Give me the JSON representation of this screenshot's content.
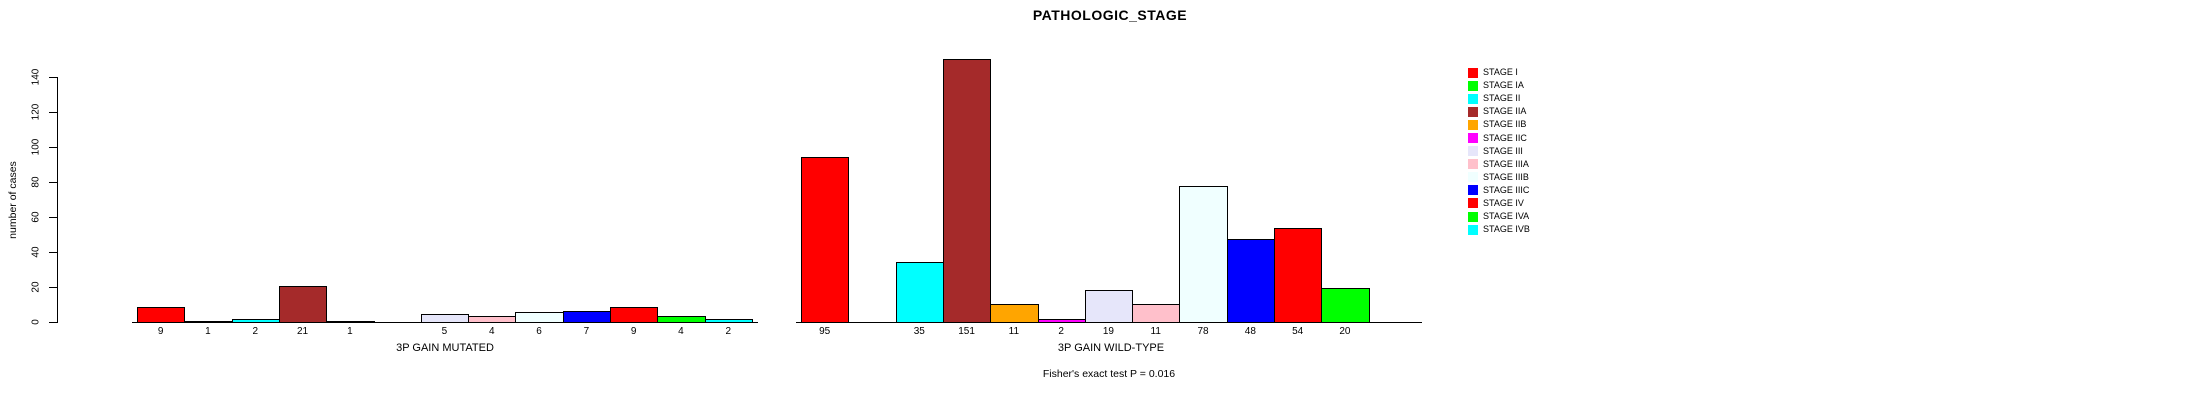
{
  "chart_data": {
    "type": "bar",
    "title": "PATHOLOGIC_STAGE",
    "ylabel": "number of cases",
    "ylim": [
      0,
      140
    ],
    "yticks": [
      0,
      20,
      40,
      60,
      80,
      100,
      120,
      140
    ],
    "categories": [
      "STAGE I",
      "STAGE IA",
      "STAGE II",
      "STAGE IIA",
      "STAGE IIB",
      "STAGE IIC",
      "STAGE III",
      "STAGE IIIA",
      "STAGE IIIB",
      "STAGE IIIC",
      "STAGE IV",
      "STAGE IVA",
      "STAGE IVB"
    ],
    "colors": [
      "#FF0000",
      "#00FF00",
      "#00FFFF",
      "#A52A2A",
      "#FFA500",
      "#FF00FF",
      "#E6E6FA",
      "#FFC0CB",
      "#F0FFFF",
      "#0000FF",
      "#FF0000",
      "#00FF00",
      "#00FFFF"
    ],
    "series": [
      {
        "name": "3P GAIN MUTATED",
        "values": [
          9,
          1,
          2,
          21,
          1,
          0,
          5,
          4,
          6,
          7,
          9,
          4,
          2
        ]
      },
      {
        "name": "3P GAIN WILD-TYPE",
        "values": [
          95,
          0,
          35,
          151,
          11,
          2,
          19,
          11,
          78,
          48,
          54,
          20,
          0
        ]
      }
    ],
    "bar_value_labels_shown": true,
    "zero_bars_have_no_label": true,
    "annotation": "Fisher's exact test P = 0.016",
    "legend_position": "right",
    "grid": false,
    "axis_color": "#000000",
    "background_color": "#FFFFFF"
  }
}
